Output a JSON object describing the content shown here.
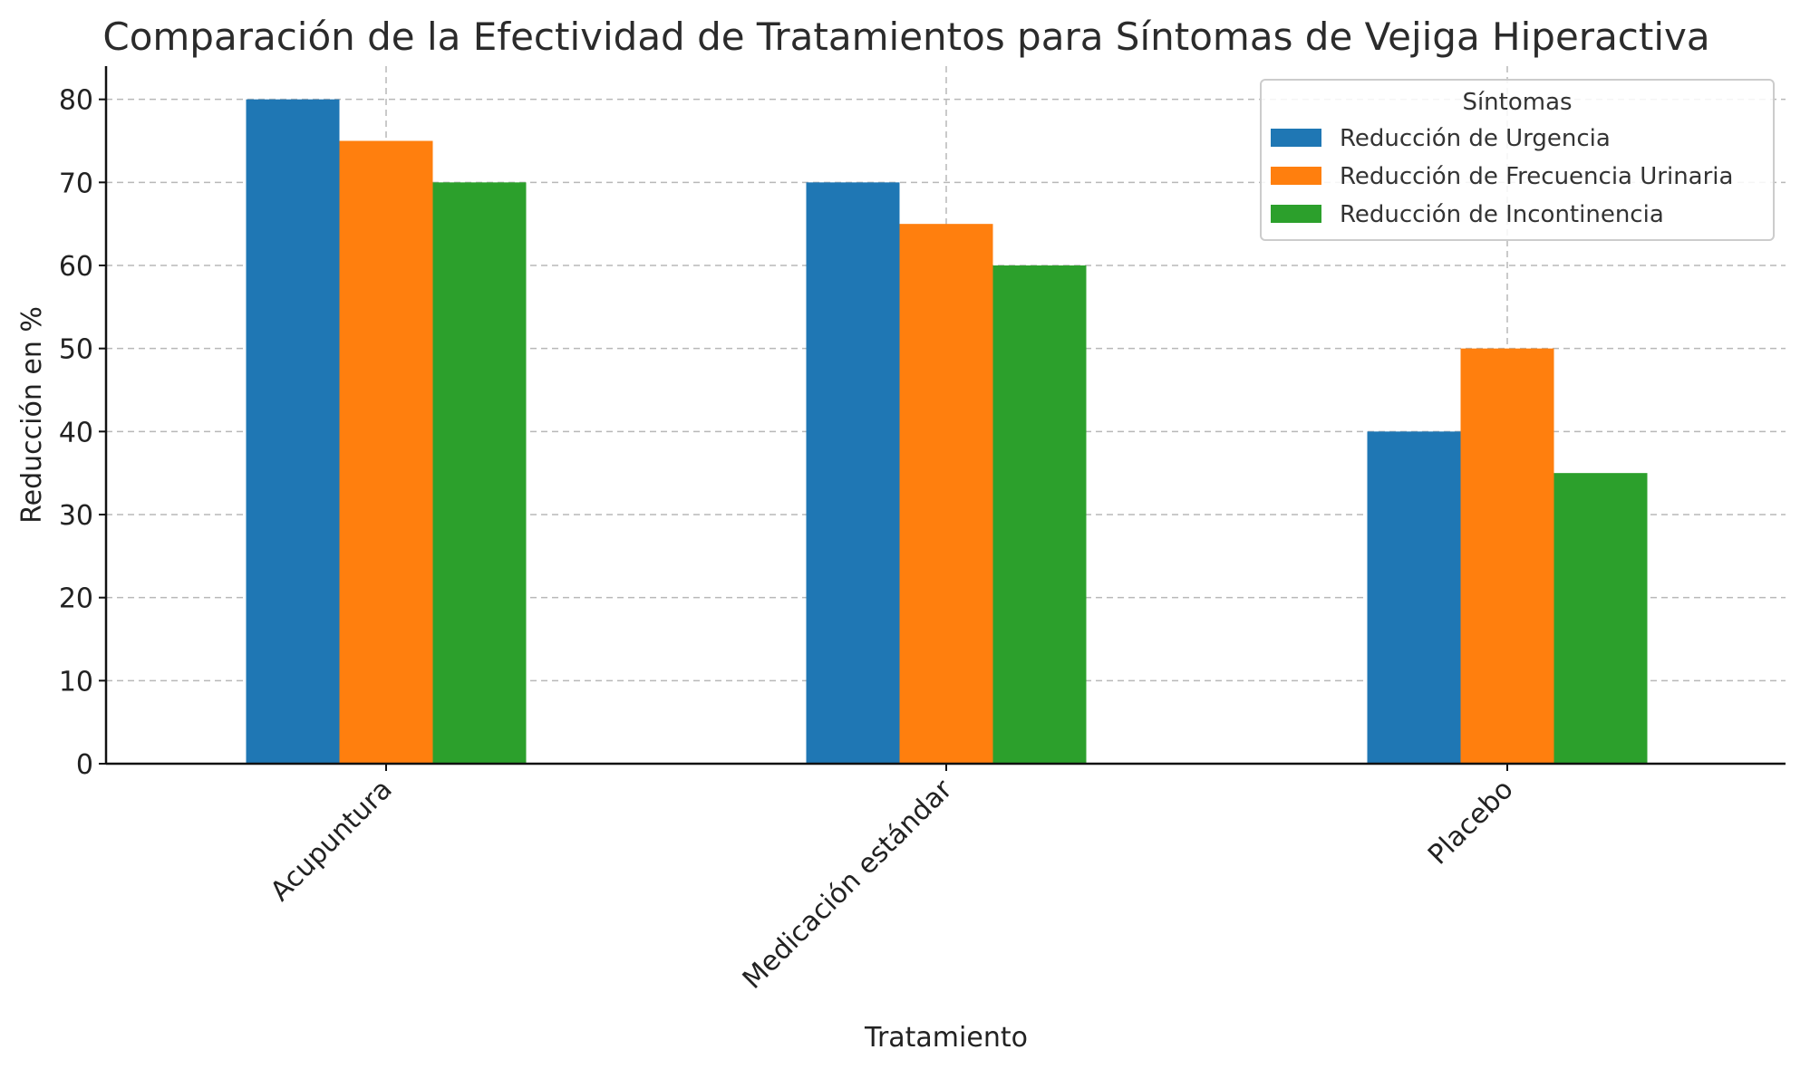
{
  "chart_data": {
    "type": "bar",
    "title": "Comparación de la Efectividad de Tratamientos para Síntomas de Vejiga Hiperactiva",
    "xlabel": "Tratamiento",
    "ylabel": "Reducción en %",
    "categories": [
      "Acupuntura",
      "Medicación estándar",
      "Placebo"
    ],
    "series": [
      {
        "name": "Reducción de Urgencia",
        "color": "#1f77b4",
        "values": [
          80,
          70,
          40
        ]
      },
      {
        "name": "Reducción de Frecuencia Urinaria",
        "color": "#ff7f0e",
        "values": [
          75,
          65,
          50
        ]
      },
      {
        "name": "Reducción de Incontinencia",
        "color": "#2ca02c",
        "values": [
          70,
          60,
          35
        ]
      }
    ],
    "ylim": [
      0,
      84
    ],
    "yticks": [
      0,
      10,
      20,
      30,
      40,
      50,
      60,
      70,
      80
    ],
    "grid": true,
    "legend": {
      "title": "Síntomas",
      "placement": "top-right"
    },
    "xtick_rotation": "45 degrees"
  }
}
